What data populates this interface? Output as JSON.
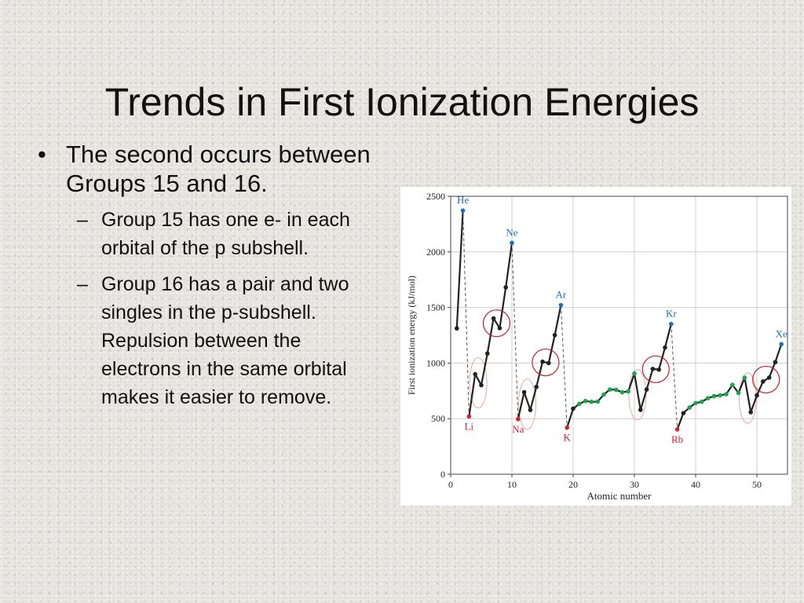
{
  "slide": {
    "title": "Trends in First Ionization Energies",
    "bullet": {
      "symbol": "•",
      "text": "The second occurs between Groups 15 and 16.",
      "sub_symbol": "–",
      "sub_items": [
        "Group 15 has one e- in each orbital of the p subshell.",
        "Group 16 has a pair and two singles in the p-subshell.  Repulsion between the electrons in the same orbital makes it easier to remove."
      ]
    }
  },
  "chart_data": {
    "type": "line",
    "title": "",
    "xlabel": "Atomic number",
    "ylabel": "First ionization energy (kJ/mol)",
    "xlim": [
      0,
      55
    ],
    "ylim": [
      0,
      2500
    ],
    "xticks": [
      0,
      10,
      20,
      30,
      40,
      50
    ],
    "yticks": [
      0,
      500,
      1000,
      1500,
      2000,
      2500
    ],
    "grid": true,
    "series": [
      {
        "x": [
          1,
          2,
          3,
          4,
          5,
          6,
          7,
          8,
          9,
          10,
          11,
          12,
          13,
          14,
          15,
          16,
          17,
          18,
          19,
          20,
          21,
          22,
          23,
          24,
          25,
          26,
          27,
          28,
          29,
          30,
          31,
          32,
          33,
          34,
          35,
          36,
          37,
          38,
          39,
          40,
          41,
          42,
          43,
          44,
          45,
          46,
          47,
          48,
          49,
          50,
          51,
          52,
          53,
          54
        ],
        "y": [
          1312,
          2372,
          520,
          900,
          801,
          1086,
          1402,
          1314,
          1681,
          2081,
          496,
          738,
          578,
          786,
          1012,
          1000,
          1251,
          1521,
          419,
          590,
          633,
          659,
          651,
          653,
          717,
          762,
          760,
          737,
          745,
          906,
          579,
          762,
          947,
          941,
          1140,
          1351,
          403,
          550,
          600,
          640,
          652,
          684,
          702,
          710,
          720,
          804,
          731,
          868,
          558,
          709,
          834,
          869,
          1008,
          1170
        ],
        "point_colors": [
          "dark",
          "blue",
          "red",
          "dark",
          "dark",
          "dark",
          "dark",
          "dark",
          "dark",
          "blue",
          "red",
          "dark",
          "dark",
          "dark",
          "dark",
          "dark",
          "dark",
          "blue",
          "red",
          "dark",
          "green",
          "green",
          "green",
          "green",
          "green",
          "green",
          "green",
          "green",
          "green",
          "green",
          "dark",
          "dark",
          "dark",
          "dark",
          "dark",
          "blue",
          "red",
          "dark",
          "green",
          "green",
          "green",
          "green",
          "green",
          "green",
          "green",
          "green",
          "green",
          "green",
          "dark",
          "dark",
          "dark",
          "dark",
          "dark",
          "blue"
        ]
      }
    ],
    "labeled_points": [
      {
        "x": 2,
        "y": 2372,
        "label": "He",
        "color": "blue"
      },
      {
        "x": 10,
        "y": 2081,
        "label": "Ne",
        "color": "blue"
      },
      {
        "x": 18,
        "y": 1521,
        "label": "Ar",
        "color": "blue"
      },
      {
        "x": 36,
        "y": 1351,
        "label": "Kr",
        "color": "blue"
      },
      {
        "x": 54,
        "y": 1170,
        "label": "Xe",
        "color": "blue"
      },
      {
        "x": 3,
        "y": 520,
        "label": "Li",
        "color": "red"
      },
      {
        "x": 11,
        "y": 496,
        "label": "Na",
        "color": "red"
      },
      {
        "x": 19,
        "y": 419,
        "label": "K",
        "color": "red"
      },
      {
        "x": 37,
        "y": 403,
        "label": "Rb",
        "color": "red"
      }
    ],
    "drop_lines": [
      [
        2,
        3
      ],
      [
        10,
        11
      ],
      [
        18,
        19
      ],
      [
        36,
        37
      ]
    ],
    "highlight_circles_group15_16": [
      {
        "x_from": 7,
        "x_to": 8
      },
      {
        "x_from": 15,
        "x_to": 16
      },
      {
        "x_from": 33,
        "x_to": 34
      },
      {
        "x_from": 51,
        "x_to": 52
      }
    ],
    "faint_ellipses_group2_13": [
      {
        "x_from": 4,
        "x_to": 5
      },
      {
        "x_from": 12,
        "x_to": 13
      },
      {
        "x_from": 30,
        "x_to": 31
      },
      {
        "x_from": 48,
        "x_to": 49
      }
    ],
    "colors": {
      "line": "#222222",
      "dark": "#222222",
      "blue": "#1f6fb5",
      "red": "#d6202e",
      "green": "#1aa64a",
      "circle": "#c8202a",
      "faint_circle": "#e9a7a9",
      "grid": "#cfcfcf",
      "axis": "#444444",
      "drop_line": "#555555",
      "text": "#222222"
    }
  }
}
